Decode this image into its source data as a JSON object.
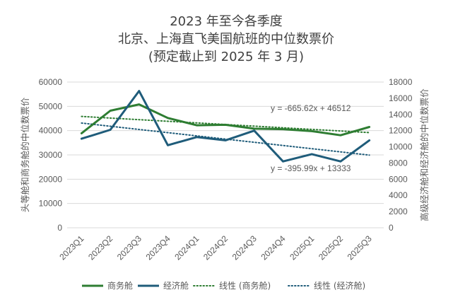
{
  "chart_data": {
    "type": "line",
    "title_lines": [
      "2023 年至今各季度",
      "北京、上海直飞美国航班的中位数票价",
      "(预定截止到 2025 年 3 月)"
    ],
    "categories": [
      "2023Q1",
      "2023Q2",
      "2023Q3",
      "2023Q4",
      "2024Q1",
      "2024Q2",
      "2024Q3",
      "2024Q4",
      "2025Q1",
      "2025Q2",
      "2025Q3"
    ],
    "y_left": {
      "label": "头等舱和商务舱的中位数票价",
      "range": [
        0,
        60000
      ],
      "ticks": [
        "0",
        "10000",
        "20000",
        "30000",
        "40000",
        "50000",
        "60000"
      ]
    },
    "y_right": {
      "label": "高级经济舱和经济舱的中位数票价",
      "range": [
        0,
        18000
      ],
      "ticks": [
        "0",
        "2000",
        "4000",
        "6000",
        "8000",
        "10000",
        "12000",
        "14000",
        "16000",
        "18000"
      ]
    },
    "gridlines": true,
    "series": [
      {
        "name": "商务舱",
        "axis": "left",
        "color": "#2e7d32",
        "values": [
          38900,
          48200,
          50800,
          45200,
          42200,
          42400,
          40800,
          40600,
          39800,
          38100,
          41500
        ]
      },
      {
        "name": "经济舱",
        "axis": "right",
        "color": "#1f5c7a",
        "values": [
          11000,
          12100,
          16900,
          10200,
          11200,
          10800,
          12000,
          8200,
          9100,
          8200,
          10800
        ]
      }
    ],
    "trendlines": [
      {
        "name": "线性 (商务舱)",
        "axis": "left",
        "color": "#2e7d32",
        "slope": -665.62,
        "intercept": 46512,
        "equation": "y = -665.62x + 46512"
      },
      {
        "name": "线性 (经济舱)",
        "axis": "right",
        "color": "#1f5c7a",
        "slope": -395.99,
        "intercept": 13333,
        "equation": "y = -395.99x + 13333"
      }
    ],
    "legend_position": "bottom"
  }
}
